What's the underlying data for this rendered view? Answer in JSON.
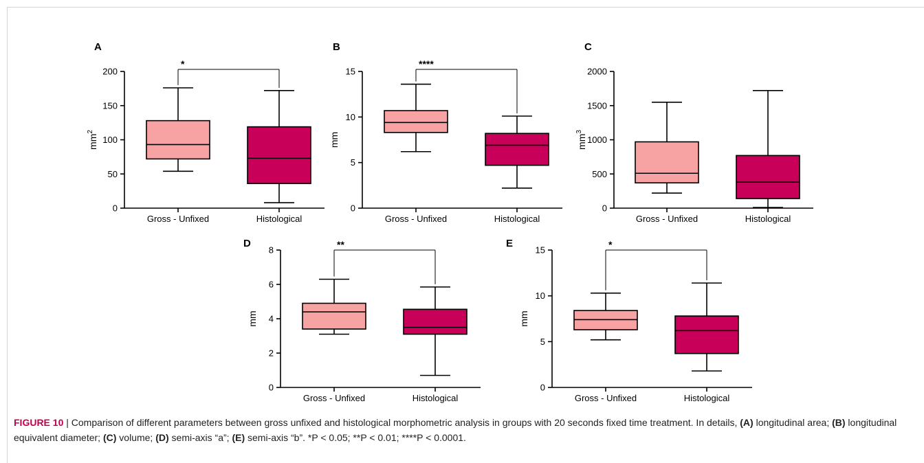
{
  "colors": {
    "gross": "#f7a3a3",
    "histological": "#c8005a",
    "axis": "#000000",
    "caption_label": "#c4004e"
  },
  "chart_data": [
    {
      "type": "box",
      "panel": "A",
      "categories": [
        "Gross - Unfixed",
        "Histological"
      ],
      "ylabel_base": "mm",
      "ylabel_sup": "2",
      "ylim": [
        0,
        200
      ],
      "yticks": [
        "0",
        "50",
        "100",
        "150",
        "200"
      ],
      "boxes": [
        {
          "name": "Gross - Unfixed",
          "min": 54,
          "q1": 72,
          "median": 93,
          "q3": 128,
          "max": 176
        },
        {
          "name": "Histological",
          "min": 8,
          "q1": 36,
          "median": 73,
          "q3": 119,
          "max": 172
        }
      ],
      "significance": "*"
    },
    {
      "type": "box",
      "panel": "B",
      "categories": [
        "Gross - Unfixed",
        "Histological"
      ],
      "ylabel_base": "mm",
      "ylabel_sup": "",
      "ylim": [
        0,
        15
      ],
      "yticks": [
        "0",
        "5",
        "10",
        "15"
      ],
      "boxes": [
        {
          "name": "Gross - Unfixed",
          "min": 6.2,
          "q1": 8.3,
          "median": 9.4,
          "q3": 10.7,
          "max": 13.6
        },
        {
          "name": "Histological",
          "min": 2.2,
          "q1": 4.7,
          "median": 6.9,
          "q3": 8.2,
          "max": 10.1
        }
      ],
      "significance": "****"
    },
    {
      "type": "box",
      "panel": "C",
      "categories": [
        "Gross - Unfixed",
        "Histological"
      ],
      "ylabel_base": "mm",
      "ylabel_sup": "3",
      "ylim": [
        0,
        2000
      ],
      "yticks": [
        "0",
        "500",
        "1000",
        "1500",
        "2000"
      ],
      "boxes": [
        {
          "name": "Gross - Unfixed",
          "min": 220,
          "q1": 370,
          "median": 510,
          "q3": 970,
          "max": 1550
        },
        {
          "name": "Histological",
          "min": 10,
          "q1": 140,
          "median": 380,
          "q3": 770,
          "max": 1720
        }
      ],
      "significance": ""
    },
    {
      "type": "box",
      "panel": "D",
      "categories": [
        "Gross - Unfixed",
        "Histological"
      ],
      "ylabel_base": "mm",
      "ylabel_sup": "",
      "ylim": [
        0,
        8
      ],
      "yticks": [
        "0",
        "2",
        "4",
        "6",
        "8"
      ],
      "boxes": [
        {
          "name": "Gross - Unfixed",
          "min": 3.1,
          "q1": 3.4,
          "median": 4.4,
          "q3": 4.9,
          "max": 6.3
        },
        {
          "name": "Histological",
          "min": 0.7,
          "q1": 3.1,
          "median": 3.5,
          "q3": 4.55,
          "max": 5.85
        }
      ],
      "significance": "**"
    },
    {
      "type": "box",
      "panel": "E",
      "categories": [
        "Gross - Unfixed",
        "Histological"
      ],
      "ylabel_base": "mm",
      "ylabel_sup": "",
      "ylim": [
        0,
        15
      ],
      "yticks": [
        "0",
        "5",
        "10",
        "15"
      ],
      "boxes": [
        {
          "name": "Gross - Unfixed",
          "min": 5.2,
          "q1": 6.3,
          "median": 7.4,
          "q3": 8.4,
          "max": 10.3
        },
        {
          "name": "Histological",
          "min": 1.8,
          "q1": 3.7,
          "median": 6.2,
          "q3": 7.8,
          "max": 11.4
        }
      ],
      "significance": "*"
    }
  ],
  "caption": {
    "label": "FIGURE 10",
    "separator": " | ",
    "text1": "Comparison of different parameters between gross unfixed and histological morphometric analysis in groups with 20 seconds fixed time treatment. In details, ",
    "ref_a": "(A)",
    "text_a": " longitudinal area; ",
    "ref_b": "(B)",
    "text_b": " longitudinal equivalent diameter; ",
    "ref_c": "(C)",
    "text_c": " volume; ",
    "ref_d": "(D)",
    "text_d": " semi-axis “a”; ",
    "ref_e": "(E)",
    "text_e": " semi-axis “b”. *P < 0.05; **P < 0.01; ****P < 0.0001."
  }
}
